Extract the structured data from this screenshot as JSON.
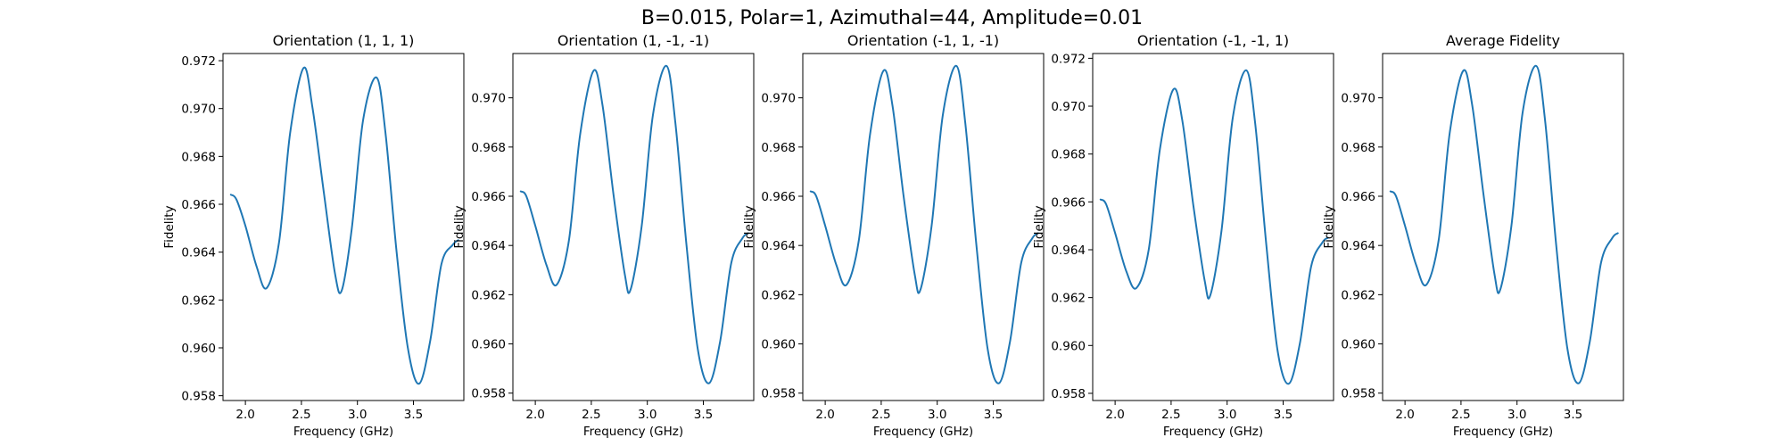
{
  "figure": {
    "suptitle": "B=0.015, Polar=1, Azimuthal=44, Amplitude=0.01"
  },
  "colors": {
    "line": "#1f77b4"
  },
  "chart_data": [
    {
      "type": "line",
      "title": "Orientation (1, 1, 1)",
      "xlabel": "Frequency (GHz)",
      "ylabel": "Fidelity",
      "xlim": [
        1.8,
        3.95
      ],
      "ylim": [
        0.9578,
        0.9723
      ],
      "xticks": [
        2.0,
        2.5,
        3.0,
        3.5
      ],
      "xtick_labels": [
        "2.0",
        "2.5",
        "3.0",
        "3.5"
      ],
      "yticks": [
        0.958,
        0.96,
        0.962,
        0.964,
        0.966,
        0.968,
        0.97,
        0.972
      ],
      "ytick_labels": [
        "0.958",
        "0.960",
        "0.962",
        "0.964",
        "0.966",
        "0.968",
        "0.970",
        "0.972"
      ],
      "grid": false,
      "series": [
        {
          "x": [
            1.87,
            1.92,
            2.0,
            2.1,
            2.19,
            2.3,
            2.4,
            2.52,
            2.6,
            2.7,
            2.8,
            2.86,
            2.95,
            3.05,
            3.17,
            3.25,
            3.35,
            3.45,
            3.55,
            3.65,
            3.75,
            3.85,
            3.9
          ],
          "y": [
            0.9664,
            0.9662,
            0.9651,
            0.9634,
            0.9625,
            0.9644,
            0.969,
            0.9717,
            0.97,
            0.9665,
            0.9631,
            0.9624,
            0.965,
            0.9695,
            0.9713,
            0.969,
            0.964,
            0.96,
            0.9585,
            0.9603,
            0.9635,
            0.9643,
            0.9645
          ]
        }
      ]
    },
    {
      "type": "line",
      "title": "Orientation (1, -1, -1)",
      "xlabel": "Frequency (GHz)",
      "ylabel": "Fidelity",
      "xlim": [
        1.8,
        3.95
      ],
      "ylim": [
        0.9577,
        0.9718
      ],
      "xticks": [
        2.0,
        2.5,
        3.0,
        3.5
      ],
      "xtick_labels": [
        "2.0",
        "2.5",
        "3.0",
        "3.5"
      ],
      "yticks": [
        0.958,
        0.96,
        0.962,
        0.964,
        0.966,
        0.968,
        0.97
      ],
      "ytick_labels": [
        "0.958",
        "0.960",
        "0.962",
        "0.964",
        "0.966",
        "0.968",
        "0.970"
      ],
      "grid": false,
      "series": [
        {
          "x": [
            1.87,
            1.92,
            2.0,
            2.1,
            2.19,
            2.3,
            2.4,
            2.52,
            2.6,
            2.7,
            2.8,
            2.85,
            2.95,
            3.05,
            3.17,
            3.25,
            3.35,
            3.45,
            3.55,
            3.65,
            3.75,
            3.85,
            3.9
          ],
          "y": [
            0.9662,
            0.966,
            0.9648,
            0.9632,
            0.9624,
            0.9642,
            0.9685,
            0.9711,
            0.9697,
            0.966,
            0.9628,
            0.9622,
            0.9648,
            0.9693,
            0.9713,
            0.969,
            0.964,
            0.9598,
            0.9584,
            0.9601,
            0.9633,
            0.9643,
            0.9645
          ]
        }
      ]
    },
    {
      "type": "line",
      "title": "Orientation (-1, 1, -1)",
      "xlabel": "Frequency (GHz)",
      "ylabel": "Fidelity",
      "xlim": [
        1.8,
        3.95
      ],
      "ylim": [
        0.9577,
        0.9718
      ],
      "xticks": [
        2.0,
        2.5,
        3.0,
        3.5
      ],
      "xtick_labels": [
        "2.0",
        "2.5",
        "3.0",
        "3.5"
      ],
      "yticks": [
        0.958,
        0.96,
        0.962,
        0.964,
        0.966,
        0.968,
        0.97
      ],
      "ytick_labels": [
        "0.958",
        "0.960",
        "0.962",
        "0.964",
        "0.966",
        "0.968",
        "0.970"
      ],
      "grid": false,
      "series": [
        {
          "x": [
            1.87,
            1.92,
            2.0,
            2.1,
            2.19,
            2.3,
            2.4,
            2.52,
            2.6,
            2.7,
            2.8,
            2.85,
            2.95,
            3.05,
            3.17,
            3.25,
            3.35,
            3.45,
            3.55,
            3.65,
            3.75,
            3.85,
            3.9
          ],
          "y": [
            0.9662,
            0.966,
            0.9648,
            0.9632,
            0.9624,
            0.9642,
            0.9685,
            0.9711,
            0.9697,
            0.966,
            0.9628,
            0.9622,
            0.9648,
            0.9693,
            0.9713,
            0.969,
            0.964,
            0.9598,
            0.9584,
            0.9601,
            0.9633,
            0.9643,
            0.9645
          ]
        }
      ]
    },
    {
      "type": "line",
      "title": "Orientation (-1, -1, 1)",
      "xlabel": "Frequency (GHz)",
      "ylabel": "Fidelity",
      "xlim": [
        1.8,
        3.95
      ],
      "ylim": [
        0.9577,
        0.9722
      ],
      "xticks": [
        2.0,
        2.5,
        3.0,
        3.5
      ],
      "xtick_labels": [
        "2.0",
        "2.5",
        "3.0",
        "3.5"
      ],
      "yticks": [
        0.958,
        0.96,
        0.962,
        0.964,
        0.966,
        0.968,
        0.97,
        0.972
      ],
      "ytick_labels": [
        "0.958",
        "0.960",
        "0.962",
        "0.964",
        "0.966",
        "0.968",
        "0.970",
        "0.972"
      ],
      "grid": false,
      "series": [
        {
          "x": [
            1.87,
            1.92,
            2.0,
            2.1,
            2.19,
            2.3,
            2.4,
            2.52,
            2.6,
            2.7,
            2.8,
            2.85,
            2.95,
            3.05,
            3.17,
            3.25,
            3.35,
            3.45,
            3.55,
            3.65,
            3.75,
            3.85,
            3.9
          ],
          "y": [
            0.9661,
            0.9659,
            0.9647,
            0.9631,
            0.9624,
            0.964,
            0.9682,
            0.9707,
            0.9694,
            0.9658,
            0.9627,
            0.9621,
            0.9648,
            0.9695,
            0.9715,
            0.9693,
            0.9642,
            0.9598,
            0.9584,
            0.9601,
            0.9633,
            0.9643,
            0.9645
          ]
        }
      ]
    },
    {
      "type": "line",
      "title": "Average Fidelity",
      "xlabel": "Frequency (GHz)",
      "ylabel": "Fidelity",
      "xlim": [
        1.8,
        3.95
      ],
      "ylim": [
        0.9577,
        0.9718
      ],
      "xticks": [
        2.0,
        2.5,
        3.0,
        3.5
      ],
      "xtick_labels": [
        "2.0",
        "2.5",
        "3.0",
        "3.5"
      ],
      "yticks": [
        0.958,
        0.96,
        0.962,
        0.964,
        0.966,
        0.968,
        0.97
      ],
      "ytick_labels": [
        "0.958",
        "0.960",
        "0.962",
        "0.964",
        "0.966",
        "0.968",
        "0.970"
      ],
      "grid": false,
      "series": [
        {
          "x": [
            1.87,
            1.92,
            2.0,
            2.1,
            2.19,
            2.3,
            2.4,
            2.52,
            2.6,
            2.7,
            2.8,
            2.85,
            2.95,
            3.05,
            3.17,
            3.25,
            3.35,
            3.45,
            3.55,
            3.65,
            3.75,
            3.85,
            3.9
          ],
          "y": [
            0.9662,
            0.966,
            0.9648,
            0.9632,
            0.9624,
            0.9642,
            0.9686,
            0.9711,
            0.9697,
            0.9661,
            0.9628,
            0.9622,
            0.9648,
            0.9694,
            0.9713,
            0.9691,
            0.964,
            0.9598,
            0.9584,
            0.9601,
            0.9633,
            0.9643,
            0.9645
          ]
        }
      ]
    }
  ]
}
